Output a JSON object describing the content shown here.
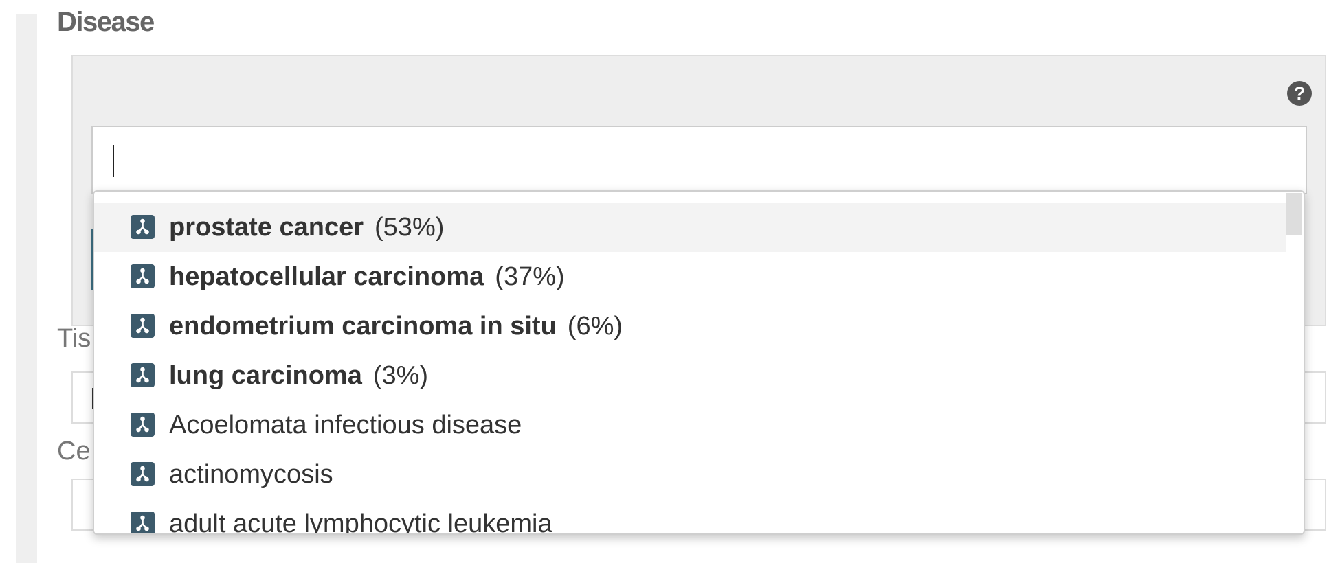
{
  "section": {
    "title": "Disease"
  },
  "search": {
    "value": "",
    "help_icon": "question-circle-icon",
    "help_glyph": "?"
  },
  "fields": [
    {
      "label": "Tis"
    },
    {
      "label": "Ce"
    }
  ],
  "dropdown": {
    "item_icon": "ontology-term-icon",
    "items": [
      {
        "name": "prostate cancer",
        "percent": "(53%)",
        "bold": true,
        "highlighted": true
      },
      {
        "name": "hepatocellular carcinoma",
        "percent": "(37%)",
        "bold": true,
        "highlighted": false
      },
      {
        "name": "endometrium carcinoma in situ",
        "percent": "(6%)",
        "bold": true,
        "highlighted": false
      },
      {
        "name": "lung carcinoma",
        "percent": "(3%)",
        "bold": true,
        "highlighted": false
      },
      {
        "name": "Acoelomata infectious disease",
        "percent": "",
        "bold": false,
        "highlighted": false
      },
      {
        "name": "actinomycosis",
        "percent": "",
        "bold": false,
        "highlighted": false
      },
      {
        "name": "adult acute lymphocytic leukemia",
        "percent": "",
        "bold": false,
        "highlighted": false
      }
    ]
  },
  "colors": {
    "accent": "#3e7185",
    "icon_bg": "#3c5a6b",
    "title": "#666666"
  }
}
